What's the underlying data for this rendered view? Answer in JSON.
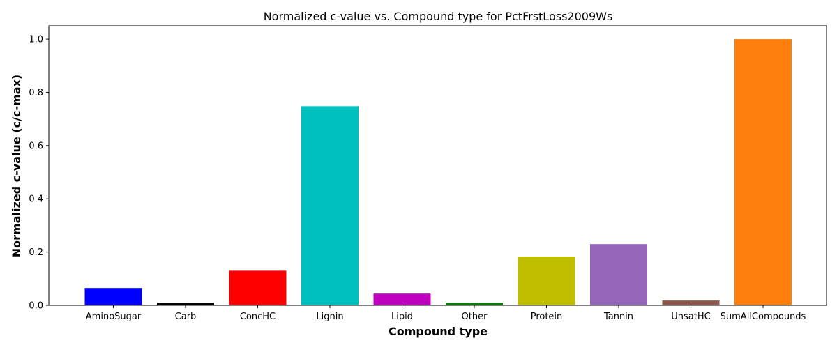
{
  "chart_data": {
    "type": "bar",
    "title": "Normalized c-value vs. Compound type for PctFrstLoss2009Ws",
    "xlabel": "Compound type",
    "ylabel": "Normalized c-value (c/c-max)",
    "categories": [
      "AminoSugar",
      "Carb",
      "ConcHC",
      "Lignin",
      "Lipid",
      "Other",
      "Protein",
      "Tannin",
      "UnsatHC",
      "SumAllCompounds"
    ],
    "values": [
      0.065,
      0.01,
      0.13,
      0.748,
      0.044,
      0.009,
      0.183,
      0.23,
      0.018,
      1.0
    ],
    "colors": [
      "#0000ff",
      "#000000",
      "#ff0000",
      "#00bfbf",
      "#bf00bf",
      "#008000",
      "#bfbf00",
      "#9467bd",
      "#8c564b",
      "#ff7f0e"
    ],
    "ylim": [
      0,
      1.05
    ],
    "yticks": [
      "0.0",
      "0.2",
      "0.4",
      "0.6",
      "0.8",
      "1.0"
    ],
    "grid": false,
    "legend": "none"
  }
}
